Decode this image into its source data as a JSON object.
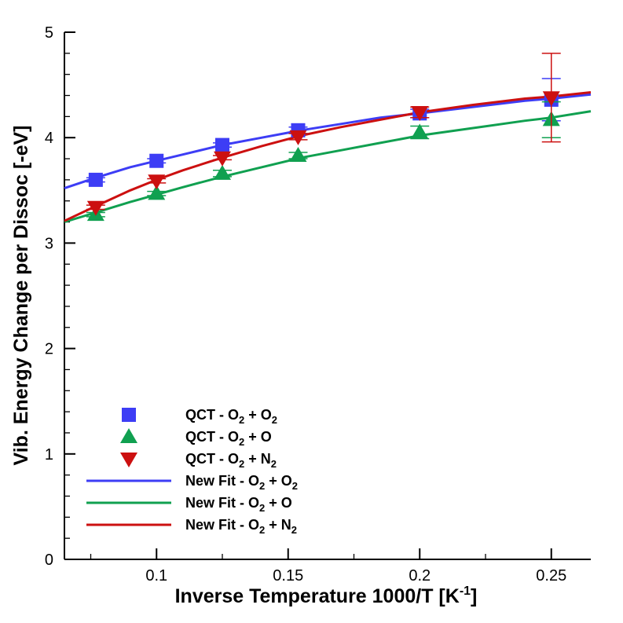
{
  "chart_data": {
    "type": "scatter",
    "x_axis": {
      "label_main": "Inverse Temperature 1000/T [K",
      "label_sup": "-1",
      "label_end": "]",
      "range": [
        0.065,
        0.265
      ],
      "ticks": [
        {
          "value": 0.1,
          "label": "0.1"
        },
        {
          "value": 0.15,
          "label": "0.15"
        },
        {
          "value": 0.2,
          "label": "0.2"
        },
        {
          "value": 0.25,
          "label": "0.25"
        }
      ],
      "minor_step": 0.025
    },
    "y_axis": {
      "label": "Vib. Energy Change per Dissoc [-eV]",
      "range": [
        0,
        5
      ],
      "ticks": [
        {
          "value": 0,
          "label": "0"
        },
        {
          "value": 1,
          "label": "1"
        },
        {
          "value": 2,
          "label": "2"
        },
        {
          "value": 3,
          "label": "3"
        },
        {
          "value": 4,
          "label": "4"
        },
        {
          "value": 5,
          "label": "5"
        }
      ],
      "minor_step": 0.2
    },
    "grid": false,
    "legend_position": "bottom-left",
    "series": [
      {
        "kind": "marker",
        "marker": "square",
        "color": "#3d3df5",
        "legend": {
          "pre": "QCT - O",
          "sub1": "2",
          "mid": " + O",
          "sub2": "2"
        },
        "points": [
          {
            "x": 0.0769,
            "y": 3.6,
            "err": 0.02
          },
          {
            "x": 0.1,
            "y": 3.78,
            "err": 0.02
          },
          {
            "x": 0.125,
            "y": 3.93,
            "err": 0.02
          },
          {
            "x": 0.1538,
            "y": 4.07,
            "err": 0.03
          },
          {
            "x": 0.2,
            "y": 4.23,
            "err": 0.04
          },
          {
            "x": 0.25,
            "y": 4.36,
            "err": 0.2
          }
        ]
      },
      {
        "kind": "marker",
        "marker": "triangle-up",
        "color": "#10a050",
        "legend": {
          "pre": "QCT - O",
          "sub1": "2",
          "mid": " + O",
          "sub2": ""
        },
        "points": [
          {
            "x": 0.0769,
            "y": 3.27,
            "err": 0.02
          },
          {
            "x": 0.1,
            "y": 3.47,
            "err": 0.02
          },
          {
            "x": 0.125,
            "y": 3.66,
            "err": 0.03
          },
          {
            "x": 0.1538,
            "y": 3.83,
            "err": 0.03
          },
          {
            "x": 0.2,
            "y": 4.05,
            "err": 0.06
          },
          {
            "x": 0.25,
            "y": 4.17,
            "err": 0.17
          }
        ]
      },
      {
        "kind": "marker",
        "marker": "triangle-down",
        "color": "#cc1010",
        "legend": {
          "pre": "QCT - O",
          "sub1": "2",
          "mid": " + N",
          "sub2": "2"
        },
        "points": [
          {
            "x": 0.0769,
            "y": 3.34,
            "err": 0.02
          },
          {
            "x": 0.1,
            "y": 3.59,
            "err": 0.02
          },
          {
            "x": 0.125,
            "y": 3.81,
            "err": 0.02
          },
          {
            "x": 0.1538,
            "y": 4.01,
            "err": 0.03
          },
          {
            "x": 0.2,
            "y": 4.24,
            "err": 0.05
          },
          {
            "x": 0.25,
            "y": 4.38,
            "err": 0.42
          }
        ]
      },
      {
        "kind": "line",
        "color": "#3d3df5",
        "legend": {
          "pre": "New Fit - O",
          "sub1": "2",
          "mid": " + O",
          "sub2": "2"
        },
        "points": [
          {
            "x": 0.065,
            "y": 3.52
          },
          {
            "x": 0.0769,
            "y": 3.62
          },
          {
            "x": 0.09,
            "y": 3.72
          },
          {
            "x": 0.1,
            "y": 3.78
          },
          {
            "x": 0.11,
            "y": 3.84
          },
          {
            "x": 0.125,
            "y": 3.93
          },
          {
            "x": 0.14,
            "y": 4.0
          },
          {
            "x": 0.155,
            "y": 4.07
          },
          {
            "x": 0.17,
            "y": 4.13
          },
          {
            "x": 0.185,
            "y": 4.19
          },
          {
            "x": 0.2,
            "y": 4.23
          },
          {
            "x": 0.22,
            "y": 4.29
          },
          {
            "x": 0.24,
            "y": 4.35
          },
          {
            "x": 0.25,
            "y": 4.37
          },
          {
            "x": 0.265,
            "y": 4.41
          }
        ]
      },
      {
        "kind": "line",
        "color": "#10a050",
        "legend": {
          "pre": "New Fit - O",
          "sub1": "2",
          "mid": " + O",
          "sub2": ""
        },
        "points": [
          {
            "x": 0.065,
            "y": 3.2
          },
          {
            "x": 0.0769,
            "y": 3.29
          },
          {
            "x": 0.09,
            "y": 3.39
          },
          {
            "x": 0.1,
            "y": 3.46
          },
          {
            "x": 0.11,
            "y": 3.53
          },
          {
            "x": 0.125,
            "y": 3.63
          },
          {
            "x": 0.14,
            "y": 3.72
          },
          {
            "x": 0.155,
            "y": 3.81
          },
          {
            "x": 0.17,
            "y": 3.88
          },
          {
            "x": 0.185,
            "y": 3.95
          },
          {
            "x": 0.2,
            "y": 4.02
          },
          {
            "x": 0.22,
            "y": 4.09
          },
          {
            "x": 0.24,
            "y": 4.16
          },
          {
            "x": 0.25,
            "y": 4.19
          },
          {
            "x": 0.265,
            "y": 4.25
          }
        ]
      },
      {
        "kind": "line",
        "color": "#cc1010",
        "legend": {
          "pre": "New Fit - O",
          "sub1": "2",
          "mid": " + N",
          "sub2": "2"
        },
        "points": [
          {
            "x": 0.065,
            "y": 3.21
          },
          {
            "x": 0.0769,
            "y": 3.35
          },
          {
            "x": 0.09,
            "y": 3.5
          },
          {
            "x": 0.1,
            "y": 3.6
          },
          {
            "x": 0.11,
            "y": 3.69
          },
          {
            "x": 0.125,
            "y": 3.81
          },
          {
            "x": 0.14,
            "y": 3.92
          },
          {
            "x": 0.155,
            "y": 4.02
          },
          {
            "x": 0.17,
            "y": 4.1
          },
          {
            "x": 0.185,
            "y": 4.17
          },
          {
            "x": 0.2,
            "y": 4.24
          },
          {
            "x": 0.22,
            "y": 4.31
          },
          {
            "x": 0.24,
            "y": 4.37
          },
          {
            "x": 0.25,
            "y": 4.39
          },
          {
            "x": 0.265,
            "y": 4.43
          }
        ]
      }
    ]
  }
}
